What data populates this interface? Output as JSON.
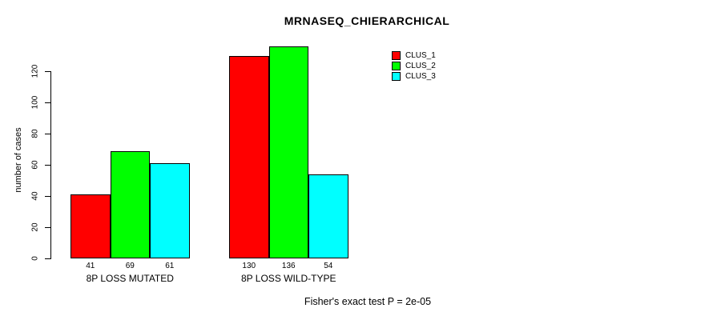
{
  "chart_data": {
    "type": "bar",
    "title": "MRNASEQ_CHIERARCHICAL",
    "ylabel": "number of cases",
    "xlabel": "",
    "categories": [
      "8P LOSS MUTATED",
      "8P LOSS WILD-TYPE"
    ],
    "series": [
      {
        "name": "CLUS_1",
        "color": "#FF0000",
        "values": [
          41,
          130
        ]
      },
      {
        "name": "CLUS_2",
        "color": "#00FF00",
        "values": [
          69,
          136
        ]
      },
      {
        "name": "CLUS_3",
        "color": "#00FFFF",
        "values": [
          61,
          54
        ]
      }
    ],
    "yticks": [
      0,
      20,
      40,
      60,
      80,
      100,
      120
    ],
    "ylim": [
      0,
      136
    ],
    "grid": false,
    "bar_outline_color": "#000000",
    "legend_position": "top-right",
    "bar_value_labels_shown": true,
    "annotation": "Fisher's exact test P = 2e-05"
  }
}
